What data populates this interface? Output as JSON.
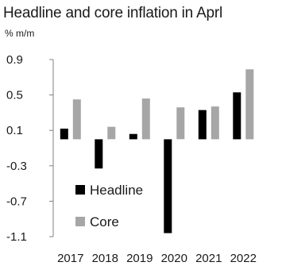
{
  "chart_data": {
    "type": "bar",
    "title": "Headline and core inflation in Aprl",
    "subtitle": "% m/m",
    "categories": [
      "2017",
      "2018",
      "2019",
      "2020",
      "2021",
      "2022"
    ],
    "series": [
      {
        "name": "Headline",
        "values": [
          0.12,
          -0.33,
          0.06,
          -1.06,
          0.33,
          0.53
        ],
        "color": "#000000"
      },
      {
        "name": "Core",
        "values": [
          0.45,
          0.14,
          0.46,
          0.36,
          0.37,
          0.79
        ],
        "color": "#a6a6a6"
      }
    ],
    "yticks": [
      "0.9",
      "0.5",
      "0.1",
      "-0.3",
      "-0.7",
      "-1.1"
    ],
    "ylim": [
      -1.1,
      0.9
    ],
    "grid": false,
    "legend_position": "bottom-left"
  }
}
